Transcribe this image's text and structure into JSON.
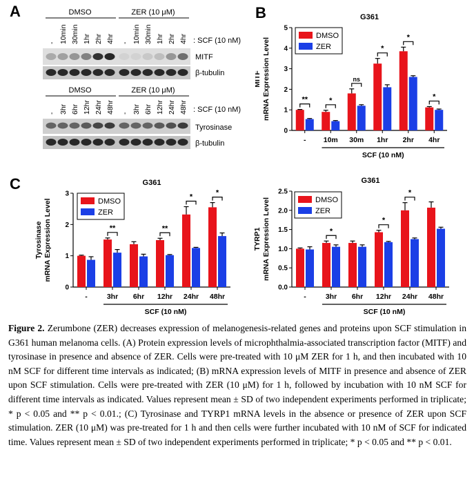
{
  "figure": {
    "panels": {
      "a": "A",
      "b": "B",
      "c": "C"
    },
    "caption": {
      "label": "Figure 2.",
      "text": "Zerumbone (ZER) decreases expression of melanogenesis-related genes and proteins upon SCF stimulation in G361 human melanoma cells. (A) Protein expression levels of microphthalmia-associated transcription factor (MITF) and tyrosinase in presence and absence of ZER. Cells were pre-treated with 10 μM ZER for 1 h, and then incubated with 10 nM SCF for different time intervals as indicated; (B) mRNA expression levels of MITF in presence and absence of ZER upon SCF stimulation. Cells were pre-treated with ZER (10 μM) for 1 h, followed by incubation with 10 nM SCF for different time intervals as indicated. Values represent mean ± SD of two independent experiments performed in triplicate; * p < 0.05 and ** p < 0.01.; (C) Tyrosinase and TYRP1 mRNA levels in the absence or presence of ZER upon SCF stimulation. ZER (10 μM) was pre-treated for 1 h and then cells were further incubated with 10 nM of SCF for indicated time. Values represent mean ± SD of two independent experiments performed in triplicate; * p < 0.05 and ** p < 0.01."
    }
  },
  "blot": {
    "top": {
      "dmso_label": "DMSO",
      "zer_label": "ZER (10 μM)",
      "lanes": [
        "-",
        "10min",
        "30min",
        "1hr",
        "2hr",
        "4hr"
      ],
      "treatment_label": ": SCF (10 nM)",
      "rows": [
        "MITF",
        "β-tubulin"
      ]
    },
    "bottom": {
      "dmso_label": "DMSO",
      "zer_label": "ZER (10 μM)",
      "lanes": [
        "-",
        "3hr",
        "6hr",
        "12hr",
        "24hr",
        "48hr"
      ],
      "treatment_label": ": SCF (10 nM)",
      "rows": [
        "Tyrosinase",
        "β-tubulin"
      ]
    }
  },
  "chart_data": [
    {
      "id": "B",
      "type": "bar",
      "title": "G361",
      "ylabel_gene": "MITF",
      "ylabel": "mRNA Expression Level",
      "xlabel": "SCF (10 nM)",
      "categories": [
        "-",
        "10m",
        "30m",
        "1hr",
        "2hr",
        "4hr"
      ],
      "ylim": [
        0,
        5
      ],
      "yticks": [
        0,
        1,
        2,
        3,
        4,
        5
      ],
      "series": [
        {
          "name": "DMSO",
          "color": "#e8141b",
          "values": [
            1.0,
            0.9,
            1.8,
            3.25,
            3.85,
            1.12
          ],
          "errors": [
            0.02,
            0.08,
            0.22,
            0.25,
            0.2,
            0.04
          ]
        },
        {
          "name": "ZER",
          "color": "#1b3fe6",
          "values": [
            0.55,
            0.45,
            1.2,
            2.1,
            2.6,
            1.0
          ],
          "errors": [
            0.03,
            0.03,
            0.05,
            0.12,
            0.06,
            0.04
          ]
        }
      ],
      "significance": [
        "**",
        "*",
        "ns",
        "*",
        "*",
        "*"
      ]
    },
    {
      "id": "C1",
      "type": "bar",
      "title": "G361",
      "ylabel_gene": "Tyrosinase",
      "ylabel": "mRNA Expression Level",
      "xlabel": "SCF (10 nM)",
      "categories": [
        "-",
        "3hr",
        "6hr",
        "12hr",
        "24hr",
        "48hr"
      ],
      "ylim": [
        0,
        3
      ],
      "yticks": [
        0,
        1,
        2,
        3
      ],
      "series": [
        {
          "name": "DMSO",
          "color": "#e8141b",
          "values": [
            1.0,
            1.52,
            1.37,
            1.5,
            2.32,
            2.55
          ],
          "errors": [
            0.02,
            0.05,
            0.08,
            0.06,
            0.25,
            0.15
          ]
        },
        {
          "name": "ZER",
          "color": "#1b3fe6",
          "values": [
            0.87,
            1.1,
            0.98,
            1.02,
            1.25,
            1.63
          ],
          "errors": [
            0.1,
            0.1,
            0.07,
            0.02,
            0.02,
            0.1
          ]
        }
      ],
      "significance": [
        "",
        "**",
        "",
        "**",
        "*",
        "*"
      ]
    },
    {
      "id": "C2",
      "type": "bar",
      "title": "G361",
      "ylabel_gene": "TYRP1",
      "ylabel": "mRNA Expression Level",
      "xlabel": "SCF (10 nM)",
      "categories": [
        "-",
        "3hr",
        "6hr",
        "12hr",
        "24hr",
        "48hr"
      ],
      "ylim": [
        0,
        2.5
      ],
      "yticks": [
        0.0,
        0.5,
        1.0,
        1.5,
        2.0,
        2.5
      ],
      "series": [
        {
          "name": "DMSO",
          "color": "#e8141b",
          "values": [
            1.0,
            1.15,
            1.15,
            1.43,
            2.0,
            2.07
          ],
          "errors": [
            0.02,
            0.05,
            0.05,
            0.05,
            0.2,
            0.15
          ]
        },
        {
          "name": "ZER",
          "color": "#1b3fe6",
          "values": [
            0.98,
            1.05,
            1.05,
            1.17,
            1.25,
            1.52
          ],
          "errors": [
            0.07,
            0.05,
            0.05,
            0.02,
            0.03,
            0.04
          ]
        }
      ],
      "significance": [
        "",
        "*",
        "",
        "*",
        "*",
        ""
      ]
    }
  ]
}
